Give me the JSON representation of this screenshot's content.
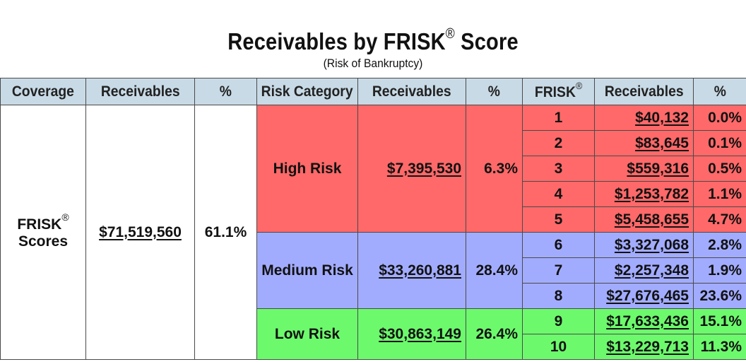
{
  "title": "Receivables by FRISK",
  "title_mark": "®",
  "title_suffix": " Score",
  "subtitle": "(Risk of Bankruptcy)",
  "headers": {
    "coverage": "Coverage",
    "receivables1": "Receivables",
    "pct1": "%",
    "risk_category": "Risk Category",
    "receivables2": "Receivables",
    "pct2": "%",
    "frisk": "FRISK",
    "frisk_mark": "®",
    "receivables3": "Receivables",
    "pct3": "%"
  },
  "coverage": {
    "label_line1": "FRISK",
    "label_mark": "®",
    "label_line2": "Scores",
    "receivables": "$71,519,560",
    "pct": "61.1%"
  },
  "categories": [
    {
      "name": "High Risk",
      "receivables": "$7,395,530",
      "pct": "6.3%",
      "color": "#ff6969"
    },
    {
      "name": "Medium Risk",
      "receivables": "$33,260,881",
      "pct": "28.4%",
      "color": "#a2acff"
    },
    {
      "name": "Low Risk",
      "receivables": "$30,863,149",
      "pct": "26.4%",
      "color": "#6cfa6c"
    }
  ],
  "scores": [
    {
      "score": "1",
      "receivables": "$40,132",
      "pct": "0.0%"
    },
    {
      "score": "2",
      "receivables": "$83,645",
      "pct": "0.1%"
    },
    {
      "score": "3",
      "receivables": "$559,316",
      "pct": "0.5%"
    },
    {
      "score": "4",
      "receivables": "$1,253,782",
      "pct": "1.1%"
    },
    {
      "score": "5",
      "receivables": "$5,458,655",
      "pct": "4.7%"
    },
    {
      "score": "6",
      "receivables": "$3,327,068",
      "pct": "2.8%"
    },
    {
      "score": "7",
      "receivables": "$2,257,348",
      "pct": "1.9%"
    },
    {
      "score": "8",
      "receivables": "$27,676,465",
      "pct": "23.6%"
    },
    {
      "score": "9",
      "receivables": "$17,633,436",
      "pct": "15.1%"
    },
    {
      "score": "10",
      "receivables": "$13,229,713",
      "pct": "11.3%"
    }
  ],
  "header_color": "#c8dae6"
}
